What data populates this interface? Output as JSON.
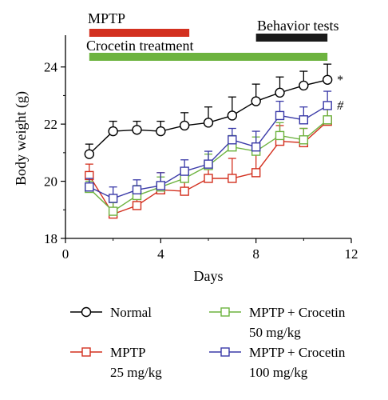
{
  "chart_data": {
    "type": "line",
    "xlabel": "Days",
    "ylabel": "Body weight (g)",
    "xlim": [
      0,
      12
    ],
    "ylim": [
      18,
      25
    ],
    "xticks": [
      0,
      4,
      8,
      12
    ],
    "yticks": [
      18,
      20,
      22,
      24
    ],
    "grid": false,
    "legend_position": "bottom",
    "x": [
      1,
      2,
      3,
      4,
      5,
      6,
      7,
      8,
      9,
      10,
      11
    ],
    "series": [
      {
        "name": "Normal",
        "color": "#000000",
        "marker": "circle",
        "values": [
          20.95,
          21.75,
          21.8,
          21.75,
          21.95,
          22.05,
          22.3,
          22.8,
          23.1,
          23.35,
          23.55
        ],
        "errors": [
          0.35,
          0.35,
          0.3,
          0.35,
          0.45,
          0.55,
          0.65,
          0.6,
          0.55,
          0.5,
          0.55
        ],
        "end_marker": "*"
      },
      {
        "name": "MPTP",
        "color": "#d3301f",
        "marker": "square",
        "values": [
          20.2,
          18.85,
          19.15,
          19.7,
          19.65,
          20.1,
          20.1,
          20.3,
          21.4,
          21.35,
          22.1
        ],
        "errors": [
          0.4,
          0.45,
          0.5,
          0.6,
          0.55,
          0.6,
          0.7,
          0.65,
          0.55,
          0.5,
          0.55
        ]
      },
      {
        "name": "MPTP + Crocetin 50 mg/kg",
        "color": "#6db33f",
        "marker": "square",
        "values": [
          19.75,
          18.95,
          19.5,
          19.8,
          20.1,
          20.55,
          21.2,
          21.05,
          21.6,
          21.45,
          22.15
        ],
        "errors": [
          0.25,
          0.3,
          0.35,
          0.35,
          0.35,
          0.4,
          0.4,
          0.5,
          0.45,
          0.4,
          0.4
        ]
      },
      {
        "name": "MPTP + Crocetin 100 mg/kg",
        "color": "#3a3aa8",
        "marker": "square",
        "values": [
          19.8,
          19.4,
          19.7,
          19.85,
          20.35,
          20.6,
          21.45,
          21.2,
          22.3,
          22.15,
          22.65
        ],
        "errors": [
          0.3,
          0.4,
          0.35,
          0.45,
          0.4,
          0.45,
          0.4,
          0.55,
          0.5,
          0.45,
          0.5
        ],
        "end_marker": "#"
      }
    ],
    "annotations": [
      {
        "label": "MPTP",
        "start": 1,
        "end": 5.2,
        "color": "#d3301f"
      },
      {
        "label": "Crocetin treatment",
        "start": 1,
        "end": 11,
        "color": "#6db33f"
      },
      {
        "label": "Behavior tests",
        "start": 8,
        "end": 11,
        "color": "#1a1a1a"
      }
    ],
    "legend": [
      {
        "series": 0,
        "line1": "Normal",
        "line2": ""
      },
      {
        "series": 1,
        "line1": "MPTP",
        "line2": "25 mg/kg"
      },
      {
        "series": 2,
        "line1": "MPTP + Crocetin",
        "line2": "50 mg/kg"
      },
      {
        "series": 3,
        "line1": "MPTP + Crocetin",
        "line2": "100 mg/kg"
      }
    ]
  }
}
